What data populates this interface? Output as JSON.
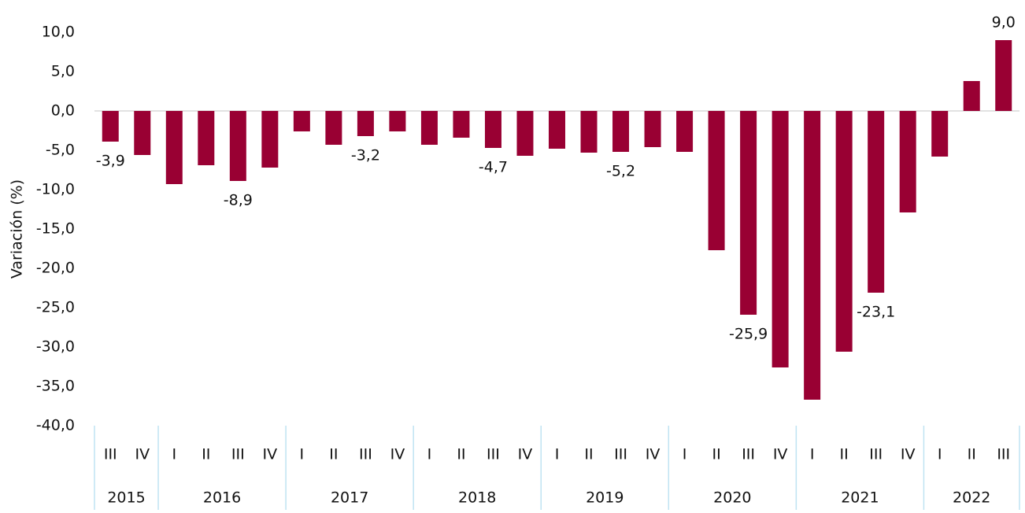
{
  "chart_data": {
    "type": "bar",
    "y_label": "Variación (%)",
    "color": "#990033",
    "groups": [
      {
        "label": "2015",
        "categories": [
          "III",
          "IV"
        ]
      },
      {
        "label": "2016",
        "categories": [
          "I",
          "II",
          "III",
          "IV"
        ]
      },
      {
        "label": "2017",
        "categories": [
          "I",
          "II",
          "III",
          "IV"
        ]
      },
      {
        "label": "2018",
        "categories": [
          "I",
          "II",
          "III",
          "IV"
        ]
      },
      {
        "label": "2019",
        "categories": [
          "I",
          "II",
          "III",
          "IV"
        ]
      },
      {
        "label": "2020",
        "categories": [
          "I",
          "II",
          "III",
          "IV"
        ]
      },
      {
        "label": "2021",
        "categories": [
          "I",
          "II",
          "III",
          "IV"
        ]
      },
      {
        "label": "2022",
        "categories": [
          "I",
          "II",
          "III"
        ]
      }
    ],
    "values": [
      -3.9,
      -5.6,
      -9.3,
      -6.9,
      -8.9,
      -7.2,
      -2.6,
      -4.3,
      -3.2,
      -2.6,
      -4.3,
      -3.4,
      -4.7,
      -5.7,
      -4.8,
      -5.3,
      -5.2,
      -4.6,
      -5.2,
      -17.7,
      -25.9,
      -32.6,
      -36.7,
      -30.6,
      -23.1,
      -12.9,
      -5.8,
      3.8,
      9.0
    ],
    "value_labels": [
      "-3,9",
      null,
      null,
      null,
      "-8,9",
      null,
      null,
      null,
      "-3,2",
      null,
      null,
      null,
      "-4,7",
      null,
      null,
      null,
      "-5,2",
      null,
      null,
      null,
      "-25,9",
      null,
      null,
      null,
      "-23,1",
      null,
      null,
      null,
      "9,0"
    ],
    "ylim": [
      -40,
      10
    ],
    "yticks": [
      {
        "value": 10,
        "label": "10,0"
      },
      {
        "value": 5,
        "label": "5,0"
      },
      {
        "value": 0,
        "label": "0,0"
      },
      {
        "value": -5,
        "label": "-5,0"
      },
      {
        "value": -10,
        "label": "-10,0"
      },
      {
        "value": -15,
        "label": "-15,0"
      },
      {
        "value": -20,
        "label": "-20,0"
      },
      {
        "value": -25,
        "label": "-25,0"
      },
      {
        "value": -30,
        "label": "-30,0"
      },
      {
        "value": -35,
        "label": "-35,0"
      },
      {
        "value": -40,
        "label": "-40,0"
      }
    ]
  }
}
